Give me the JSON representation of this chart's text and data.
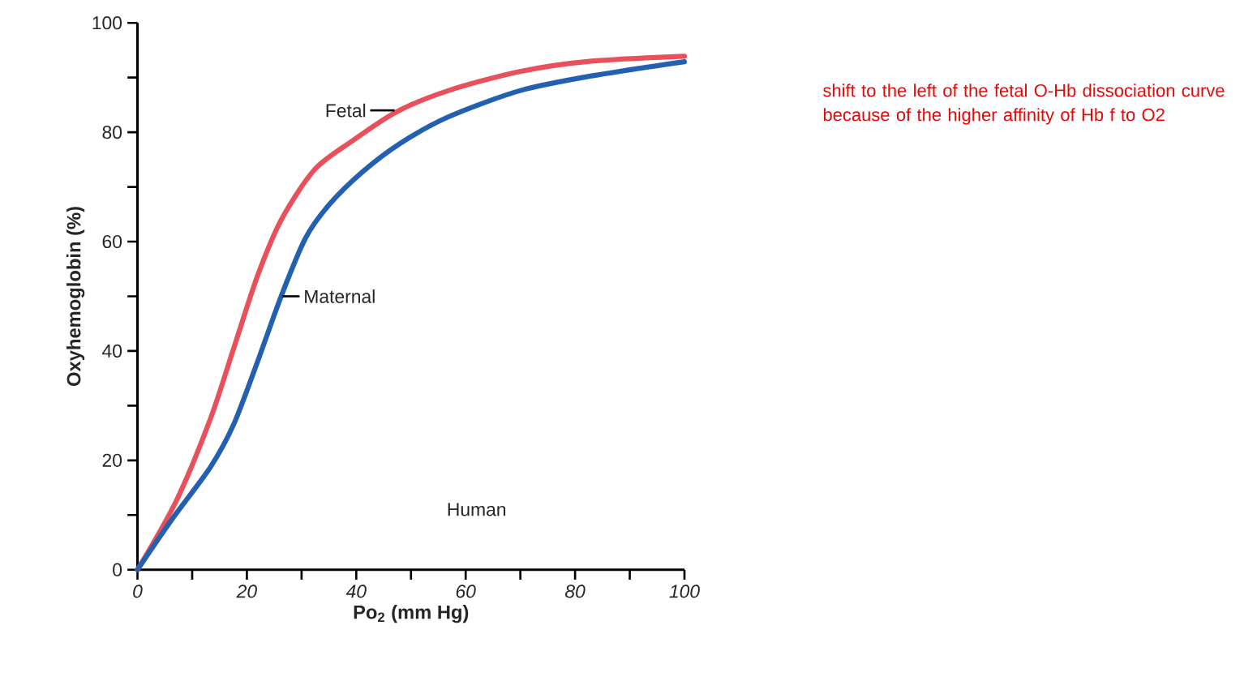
{
  "chart_data": {
    "type": "line",
    "xlabel": "Po$_{2}$ (mm Hg)",
    "ylabel": "Oxyhemoglobin (%)",
    "xlim": [
      0,
      100
    ],
    "ylim": [
      0,
      100
    ],
    "xticks": [
      0,
      {
        "value": 10,
        "label": null
      },
      20,
      {
        "value": 30,
        "label": null
      },
      40,
      {
        "value": 50,
        "label": null
      },
      60,
      {
        "value": 70,
        "label": null
      },
      80,
      {
        "value": 90,
        "label": null
      },
      100
    ],
    "yticks": [
      0,
      {
        "value": 10,
        "label": null
      },
      20,
      {
        "value": 30,
        "label": null
      },
      40,
      {
        "value": 50,
        "label": null
      },
      60,
      {
        "value": 70,
        "label": null
      },
      80,
      {
        "value": 90,
        "label": null
      },
      100
    ],
    "series": [
      {
        "color": "#e8505b",
        "x": [
          0,
          7.1,
          13.3,
          17.6,
          21.9,
          26.3,
          32.4,
          39.4,
          47.3,
          56.8,
          69.9,
          83,
          100
        ],
        "values": [
          0,
          12.6,
          27.5,
          40.5,
          53.6,
          64,
          73.2,
          78.5,
          83.7,
          87.6,
          91.1,
          93,
          93.9
        ]
      },
      {
        "color": "#2361b0",
        "x": [
          0,
          6.3,
          13.3,
          17.6,
          21.9,
          26.3,
          30.7,
          35,
          41.2,
          48.1,
          56.8,
          69.9,
          83,
          100
        ],
        "values": [
          0,
          9.2,
          18.7,
          26.6,
          37.9,
          50.1,
          60.6,
          66.7,
          72.8,
          78,
          82.8,
          87.6,
          90.3,
          92.9
        ]
      }
    ],
    "annotations": [
      {
        "text": "Fetal",
        "x": 47,
        "y": 84
      },
      {
        "text": "Maternal",
        "x": 26.5,
        "y": 50
      },
      "Human",
      "shift to the left of the fetal O-Hb dissociation curve because of the higher affinity of Hb f to O2"
    ]
  }
}
